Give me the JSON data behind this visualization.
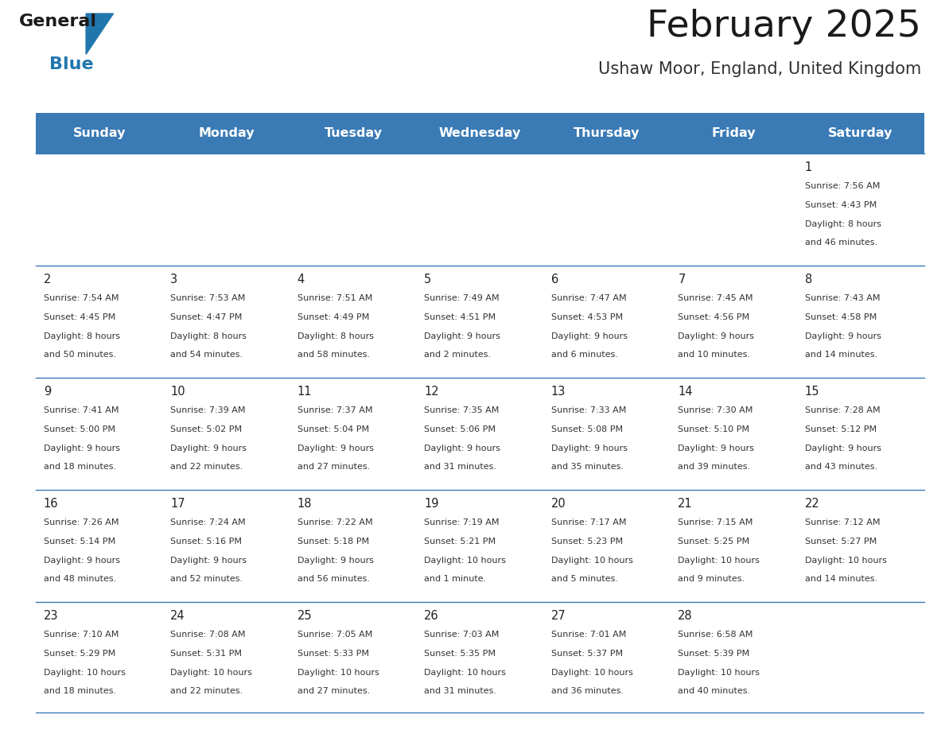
{
  "title": "February 2025",
  "subtitle": "Ushaw Moor, England, United Kingdom",
  "days_of_week": [
    "Sunday",
    "Monday",
    "Tuesday",
    "Wednesday",
    "Thursday",
    "Friday",
    "Saturday"
  ],
  "header_bg": "#3a7ab5",
  "header_text": "#ffffff",
  "cell_bg_odd": "#f0f0f0",
  "cell_bg_even": "#ffffff",
  "border_color": "#3a7ab5",
  "title_color": "#1a1a1a",
  "subtitle_color": "#333333",
  "text_color": "#333333",
  "day_num_color": "#222222",
  "calendar": [
    [
      null,
      null,
      null,
      null,
      null,
      null,
      {
        "day": 1,
        "sunrise": "7:56 AM",
        "sunset": "4:43 PM",
        "daylight_h": "8 hours",
        "daylight_m": "46 minutes"
      }
    ],
    [
      {
        "day": 2,
        "sunrise": "7:54 AM",
        "sunset": "4:45 PM",
        "daylight_h": "8 hours",
        "daylight_m": "50 minutes"
      },
      {
        "day": 3,
        "sunrise": "7:53 AM",
        "sunset": "4:47 PM",
        "daylight_h": "8 hours",
        "daylight_m": "54 minutes"
      },
      {
        "day": 4,
        "sunrise": "7:51 AM",
        "sunset": "4:49 PM",
        "daylight_h": "8 hours",
        "daylight_m": "58 minutes"
      },
      {
        "day": 5,
        "sunrise": "7:49 AM",
        "sunset": "4:51 PM",
        "daylight_h": "9 hours",
        "daylight_m": "2 minutes"
      },
      {
        "day": 6,
        "sunrise": "7:47 AM",
        "sunset": "4:53 PM",
        "daylight_h": "9 hours",
        "daylight_m": "6 minutes"
      },
      {
        "day": 7,
        "sunrise": "7:45 AM",
        "sunset": "4:56 PM",
        "daylight_h": "9 hours",
        "daylight_m": "10 minutes"
      },
      {
        "day": 8,
        "sunrise": "7:43 AM",
        "sunset": "4:58 PM",
        "daylight_h": "9 hours",
        "daylight_m": "14 minutes"
      }
    ],
    [
      {
        "day": 9,
        "sunrise": "7:41 AM",
        "sunset": "5:00 PM",
        "daylight_h": "9 hours",
        "daylight_m": "18 minutes"
      },
      {
        "day": 10,
        "sunrise": "7:39 AM",
        "sunset": "5:02 PM",
        "daylight_h": "9 hours",
        "daylight_m": "22 minutes"
      },
      {
        "day": 11,
        "sunrise": "7:37 AM",
        "sunset": "5:04 PM",
        "daylight_h": "9 hours",
        "daylight_m": "27 minutes"
      },
      {
        "day": 12,
        "sunrise": "7:35 AM",
        "sunset": "5:06 PM",
        "daylight_h": "9 hours",
        "daylight_m": "31 minutes"
      },
      {
        "day": 13,
        "sunrise": "7:33 AM",
        "sunset": "5:08 PM",
        "daylight_h": "9 hours",
        "daylight_m": "35 minutes"
      },
      {
        "day": 14,
        "sunrise": "7:30 AM",
        "sunset": "5:10 PM",
        "daylight_h": "9 hours",
        "daylight_m": "39 minutes"
      },
      {
        "day": 15,
        "sunrise": "7:28 AM",
        "sunset": "5:12 PM",
        "daylight_h": "9 hours",
        "daylight_m": "43 minutes"
      }
    ],
    [
      {
        "day": 16,
        "sunrise": "7:26 AM",
        "sunset": "5:14 PM",
        "daylight_h": "9 hours",
        "daylight_m": "48 minutes"
      },
      {
        "day": 17,
        "sunrise": "7:24 AM",
        "sunset": "5:16 PM",
        "daylight_h": "9 hours",
        "daylight_m": "52 minutes"
      },
      {
        "day": 18,
        "sunrise": "7:22 AM",
        "sunset": "5:18 PM",
        "daylight_h": "9 hours",
        "daylight_m": "56 minutes"
      },
      {
        "day": 19,
        "sunrise": "7:19 AM",
        "sunset": "5:21 PM",
        "daylight_h": "10 hours",
        "daylight_m": "1 minute"
      },
      {
        "day": 20,
        "sunrise": "7:17 AM",
        "sunset": "5:23 PM",
        "daylight_h": "10 hours",
        "daylight_m": "5 minutes"
      },
      {
        "day": 21,
        "sunrise": "7:15 AM",
        "sunset": "5:25 PM",
        "daylight_h": "10 hours",
        "daylight_m": "9 minutes"
      },
      {
        "day": 22,
        "sunrise": "7:12 AM",
        "sunset": "5:27 PM",
        "daylight_h": "10 hours",
        "daylight_m": "14 minutes"
      }
    ],
    [
      {
        "day": 23,
        "sunrise": "7:10 AM",
        "sunset": "5:29 PM",
        "daylight_h": "10 hours",
        "daylight_m": "18 minutes"
      },
      {
        "day": 24,
        "sunrise": "7:08 AM",
        "sunset": "5:31 PM",
        "daylight_h": "10 hours",
        "daylight_m": "22 minutes"
      },
      {
        "day": 25,
        "sunrise": "7:05 AM",
        "sunset": "5:33 PM",
        "daylight_h": "10 hours",
        "daylight_m": "27 minutes"
      },
      {
        "day": 26,
        "sunrise": "7:03 AM",
        "sunset": "5:35 PM",
        "daylight_h": "10 hours",
        "daylight_m": "31 minutes"
      },
      {
        "day": 27,
        "sunrise": "7:01 AM",
        "sunset": "5:37 PM",
        "daylight_h": "10 hours",
        "daylight_m": "36 minutes"
      },
      {
        "day": 28,
        "sunrise": "6:58 AM",
        "sunset": "5:39 PM",
        "daylight_h": "10 hours",
        "daylight_m": "40 minutes"
      },
      null
    ]
  ]
}
